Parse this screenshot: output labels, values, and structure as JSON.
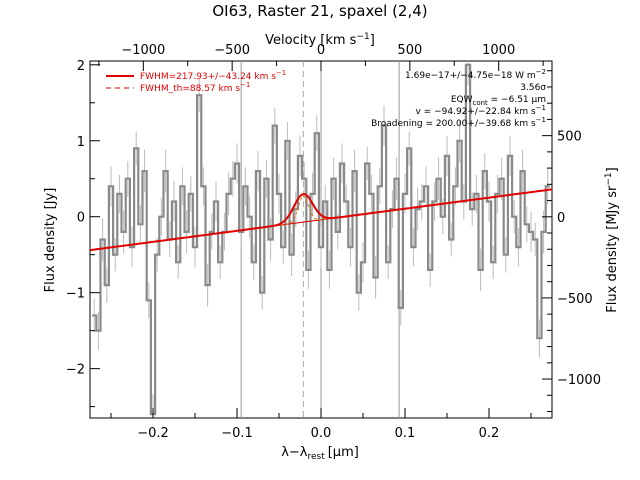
{
  "chart_data": {
    "type": "line",
    "title": "OI63, Raster 21, spaxel (2,4)",
    "xlabel_bottom": "λ−λ",
    "xlabel_bottom_sub": "rest",
    "xlabel_bottom_unit": "[μm]",
    "xlabel_top": "Velocity [km s",
    "xlabel_top_sup": "−1",
    "xlabel_top_end": "]",
    "ylabel_left": "Flux density [Jy]",
    "ylabel_right": "Flux density [MJy sr",
    "ylabel_right_sup": "−1",
    "ylabel_right_end": "]",
    "xlim": [
      -0.275,
      0.275
    ],
    "ylim": [
      -2.65,
      2.05
    ],
    "xlim_velocity": [
      -1300,
      1300
    ],
    "ylim_right": [
      -1240,
      960
    ],
    "x_ticks": [
      -0.2,
      -0.1,
      0.0,
      0.1,
      0.2
    ],
    "x_tick_labels": [
      "−0.2",
      "−0.1",
      "0.0",
      "0.1",
      "0.2"
    ],
    "y_ticks": [
      -2,
      -1,
      0,
      1,
      2
    ],
    "y_tick_labels": [
      "−2",
      "−1",
      "0",
      "1",
      "2"
    ],
    "velocity_ticks": [
      -1000,
      -500,
      0,
      500,
      1000
    ],
    "velocity_tick_labels": [
      "−1000",
      "−500",
      "0",
      "500",
      "1000"
    ],
    "right_ticks": [
      -1000,
      -500,
      0,
      500
    ],
    "right_tick_labels": [
      "−1000",
      "−500",
      "0",
      "500"
    ],
    "vertical_lines": [
      -0.095,
      0.0,
      0.093
    ],
    "line_center": -0.021,
    "legend": [
      {
        "label": "FWHM=217.93+/−43.24 km s",
        "sup": "−1",
        "style": "solid"
      },
      {
        "label": "FWHM_th=88.57 km s",
        "sup": "−1",
        "style": "dashed"
      }
    ],
    "annotations": [
      "1.69e−17+/−4.75e−18 W m",
      "3.56σ",
      "EQW",
      "v = −94.92+/−22.84 km s",
      "Broadening = 200.00+/−39.68 km s"
    ],
    "annotation_parts": {
      "flux_sup": "−2",
      "eqw_sub": "cont",
      "eqw_value": " = −6.51 μm",
      "v_sup": "−1",
      "broad_sup": "−1"
    },
    "continuum": {
      "x": [
        -0.275,
        0.275
      ],
      "y": [
        -0.44,
        0.36
      ]
    },
    "gaussian": {
      "center": -0.021,
      "amplitude": 0.37,
      "sigma": 0.0111
    },
    "spectrum": {
      "x": [
        -0.27,
        -0.265,
        -0.26,
        -0.255,
        -0.25,
        -0.245,
        -0.24,
        -0.235,
        -0.23,
        -0.225,
        -0.22,
        -0.215,
        -0.21,
        -0.205,
        -0.2,
        -0.195,
        -0.19,
        -0.185,
        -0.18,
        -0.175,
        -0.17,
        -0.165,
        -0.16,
        -0.155,
        -0.15,
        -0.145,
        -0.14,
        -0.135,
        -0.13,
        -0.125,
        -0.12,
        -0.115,
        -0.11,
        -0.105,
        -0.1,
        -0.095,
        -0.09,
        -0.085,
        -0.08,
        -0.075,
        -0.07,
        -0.065,
        -0.06,
        -0.055,
        -0.05,
        -0.045,
        -0.04,
        -0.035,
        -0.03,
        -0.025,
        -0.02,
        -0.015,
        -0.01,
        -0.005,
        0.0,
        0.005,
        0.01,
        0.015,
        0.02,
        0.025,
        0.03,
        0.035,
        0.04,
        0.045,
        0.05,
        0.055,
        0.06,
        0.065,
        0.07,
        0.075,
        0.08,
        0.085,
        0.09,
        0.095,
        0.1,
        0.105,
        0.11,
        0.115,
        0.12,
        0.125,
        0.13,
        0.135,
        0.14,
        0.145,
        0.15,
        0.155,
        0.16,
        0.165,
        0.17,
        0.175,
        0.18,
        0.185,
        0.19,
        0.195,
        0.2,
        0.205,
        0.21,
        0.215,
        0.22,
        0.225,
        0.23,
        0.235,
        0.24,
        0.245,
        0.25,
        0.255,
        0.26,
        0.265,
        0.27
      ],
      "y": [
        -1.3,
        -1.5,
        -0.3,
        -0.9,
        0.4,
        -0.5,
        0.3,
        -0.2,
        0.5,
        -0.4,
        0.9,
        -0.1,
        0.6,
        -1.1,
        -2.6,
        -0.5,
        0.0,
        0.6,
        -0.3,
        0.2,
        -0.6,
        0.4,
        -0.2,
        0.3,
        -0.4,
        1.6,
        0.4,
        -0.9,
        -0.2,
        0.2,
        -0.6,
        -0.2,
        0.3,
        0.5,
        0.7,
        -0.2,
        0.4,
        0.0,
        -0.6,
        0.6,
        -1.0,
        0.5,
        -0.3,
        1.2,
        0.3,
        -0.4,
        1.0,
        -0.5,
        0.1,
        0.8,
        0.5,
        -0.7,
        0.3,
        1.1,
        -0.4,
        0.2,
        -0.7,
        0.5,
        -0.2,
        0.7,
        0.2,
        -0.4,
        0.6,
        -1.0,
        -0.6,
        0.7,
        0.3,
        -0.8,
        0.4,
        1.2,
        -0.6,
        0.1,
        0.5,
        -1.2,
        0.3,
        0.9,
        -0.4,
        0.1,
        0.2,
        0.4,
        -0.7,
        0.2,
        0.5,
        0.0,
        0.8,
        -0.3,
        0.4,
        1.0,
        0.2,
        2.0,
        0.1,
        0.3,
        -0.7,
        0.6,
        0.2,
        -0.6,
        0.3,
        0.5,
        -0.5,
        0.8,
        0.0,
        -0.4,
        0.6,
        -0.1,
        -0.2,
        -0.3,
        -1.6,
        -0.2,
        0.4
      ]
    }
  }
}
